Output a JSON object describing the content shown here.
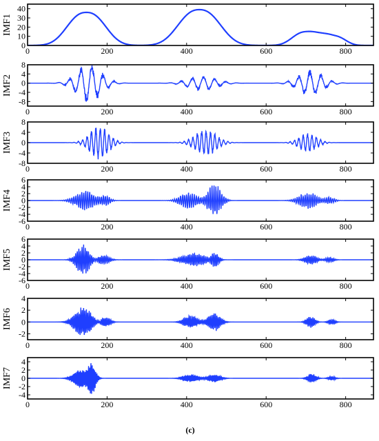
{
  "caption": "(c)",
  "colors": {
    "signal": "#1f3fff",
    "axis": "#000000"
  },
  "chart_data": [
    {
      "type": "line",
      "ylabel": "IMF1",
      "xlim": [
        0,
        870
      ],
      "ylim": [
        0,
        45
      ],
      "xticks": [
        0,
        200,
        400,
        600,
        800
      ],
      "yticks": [
        0,
        10,
        20,
        30,
        40
      ],
      "signal": {
        "kind": "envelope",
        "bumps": [
          {
            "center": 148,
            "width": 62,
            "amplitude": 36
          },
          {
            "center": 432,
            "width": 68,
            "amplitude": 39
          },
          {
            "center": 702,
            "width": 46,
            "amplitude": 15
          },
          {
            "center": 770,
            "width": 38,
            "amplitude": 10
          }
        ]
      }
    },
    {
      "type": "line",
      "ylabel": "IMF2",
      "xlim": [
        0,
        870
      ],
      "ylim": [
        -10,
        8
      ],
      "xticks": [
        0,
        200,
        400,
        600,
        800
      ],
      "yticks": [
        -8,
        -4,
        0,
        4,
        8
      ],
      "signal": {
        "kind": "oscillation",
        "period": 28,
        "bursts": [
          {
            "center": 155,
            "width": 42,
            "amplitude": 9
          },
          {
            "center": 440,
            "width": 48,
            "amplitude": 3.5
          },
          {
            "center": 712,
            "width": 42,
            "amplitude": 6
          }
        ]
      }
    },
    {
      "type": "line",
      "ylabel": "IMF3",
      "xlim": [
        0,
        870
      ],
      "ylim": [
        -8,
        8
      ],
      "xticks": [
        0,
        200,
        400,
        600,
        800
      ],
      "yticks": [
        -8,
        -4,
        0,
        4,
        8
      ],
      "signal": {
        "kind": "oscillation",
        "period": 11,
        "bursts": [
          {
            "center": 180,
            "width": 32,
            "amplitude": 7
          },
          {
            "center": 448,
            "width": 36,
            "amplitude": 5.5
          },
          {
            "center": 705,
            "width": 30,
            "amplitude": 4
          }
        ]
      }
    },
    {
      "type": "line",
      "ylabel": "IMF4",
      "xlim": [
        0,
        870
      ],
      "ylim": [
        -6,
        6
      ],
      "xticks": [
        0,
        200,
        400,
        600,
        800
      ],
      "yticks": [
        -6,
        -4,
        -2,
        0,
        2,
        4,
        6
      ],
      "signal": {
        "kind": "oscillation",
        "period": 5,
        "bursts": [
          {
            "center": 145,
            "width": 32,
            "amplitude": 3
          },
          {
            "center": 195,
            "width": 16,
            "amplitude": 1.5
          },
          {
            "center": 405,
            "width": 28,
            "amplitude": 2.5
          },
          {
            "center": 470,
            "width": 22,
            "amplitude": 5
          },
          {
            "center": 705,
            "width": 30,
            "amplitude": 2.5
          },
          {
            "center": 760,
            "width": 16,
            "amplitude": 1
          }
        ]
      }
    },
    {
      "type": "line",
      "ylabel": "IMF5",
      "xlim": [
        0,
        870
      ],
      "ylim": [
        -6,
        6
      ],
      "xticks": [
        0,
        200,
        400,
        600,
        800
      ],
      "yticks": [
        -6,
        -4,
        -2,
        0,
        2,
        4,
        6
      ],
      "signal": {
        "kind": "oscillation",
        "period": 4,
        "bursts": [
          {
            "center": 140,
            "width": 22,
            "amplitude": 4.5
          },
          {
            "center": 190,
            "width": 20,
            "amplitude": 1.5
          },
          {
            "center": 420,
            "width": 40,
            "amplitude": 2
          },
          {
            "center": 470,
            "width": 14,
            "amplitude": 2.5
          },
          {
            "center": 712,
            "width": 20,
            "amplitude": 1.5
          },
          {
            "center": 760,
            "width": 14,
            "amplitude": 0.8
          }
        ]
      }
    },
    {
      "type": "line",
      "ylabel": "IMF6",
      "xlim": [
        0,
        870
      ],
      "ylim": [
        -3,
        4
      ],
      "xticks": [
        0,
        200,
        400,
        600,
        800
      ],
      "yticks": [
        -2,
        0,
        2,
        4
      ],
      "signal": {
        "kind": "oscillation",
        "period": 3.5,
        "bursts": [
          {
            "center": 140,
            "width": 28,
            "amplitude": 2.8
          },
          {
            "center": 195,
            "width": 16,
            "amplitude": 1
          },
          {
            "center": 410,
            "width": 22,
            "amplitude": 1.2
          },
          {
            "center": 470,
            "width": 20,
            "amplitude": 1.6
          },
          {
            "center": 712,
            "width": 14,
            "amplitude": 1
          },
          {
            "center": 765,
            "width": 12,
            "amplitude": 0.5
          }
        ]
      }
    },
    {
      "type": "line",
      "ylabel": "IMF7",
      "xlim": [
        0,
        870
      ],
      "ylim": [
        -5,
        5
      ],
      "xticks": [
        0,
        200,
        400,
        600,
        800
      ],
      "yticks": [
        -4,
        -2,
        0,
        2,
        4
      ],
      "signal": {
        "kind": "oscillation",
        "period": 3,
        "bursts": [
          {
            "center": 135,
            "width": 24,
            "amplitude": 2.5
          },
          {
            "center": 162,
            "width": 12,
            "amplitude": 4
          },
          {
            "center": 410,
            "width": 24,
            "amplitude": 1
          },
          {
            "center": 470,
            "width": 20,
            "amplitude": 1
          },
          {
            "center": 715,
            "width": 14,
            "amplitude": 1.2
          },
          {
            "center": 765,
            "width": 12,
            "amplitude": 0.5
          }
        ]
      }
    }
  ]
}
